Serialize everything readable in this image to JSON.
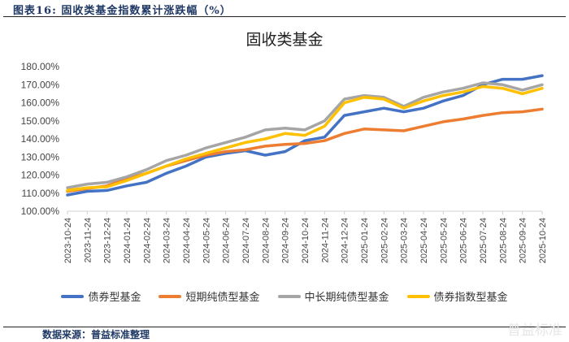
{
  "figure_title": "图表16:   固收类基金指数累计涨跌幅（%）",
  "source": "数据来源：普益标准整理",
  "watermark": "普益标准",
  "chart_data": {
    "type": "line",
    "title": "固收类基金",
    "xlabel": "",
    "ylabel": "",
    "ylim": [
      100,
      180
    ],
    "yticks": [
      "100.00%",
      "110.00%",
      "120.00%",
      "130.00%",
      "140.00%",
      "150.00%",
      "160.00%",
      "170.00%",
      "180.00%"
    ],
    "grid": false,
    "legend_position": "bottom",
    "x": [
      "2023-10-24",
      "2023-11-24",
      "2023-12-24",
      "2024-01-24",
      "2024-02-24",
      "2024-03-24",
      "2024-04-24",
      "2024-05-24",
      "2024-06-24",
      "2024-07-24",
      "2024-08-24",
      "2024-09-24",
      "2024-10-24",
      "2024-11-24",
      "2024-12-24",
      "2025-01-24",
      "2025-02-24",
      "2025-03-24",
      "2025-04-24",
      "2025-05-24",
      "2025-06-24",
      "2025-07-24",
      "2025-08-24",
      "2025-09-24",
      "2025-10-24"
    ],
    "series": [
      {
        "name": "债券型基金",
        "color": "#4472c4",
        "values": [
          109,
          111,
          111.5,
          114,
          116,
          121,
          125,
          130,
          132,
          133.5,
          131,
          133,
          139,
          141,
          153,
          155,
          157,
          155,
          157,
          161,
          164,
          170,
          173,
          173,
          175
        ]
      },
      {
        "name": "短期纯债型基金",
        "color": "#ed7d31",
        "values": [
          111,
          112.5,
          114,
          118,
          121,
          125,
          128,
          131,
          133,
          134,
          136,
          137,
          137.5,
          139,
          143,
          145.5,
          145,
          144.5,
          147,
          149.5,
          151,
          153,
          154.5,
          155,
          156.5
        ]
      },
      {
        "name": "中长期纯债型基金",
        "color": "#a5a5a5",
        "values": [
          113,
          115,
          116,
          119,
          123,
          128,
          131,
          135,
          138,
          141,
          145,
          146,
          145,
          150,
          162,
          164,
          163,
          158,
          163,
          166,
          168,
          171,
          170,
          167,
          170
        ]
      },
      {
        "name": "债券指数型基金",
        "color": "#ffc000",
        "values": [
          111.5,
          113,
          113.5,
          117,
          121,
          125,
          129,
          132,
          135,
          138,
          140,
          143,
          142,
          147,
          160,
          163,
          162,
          157,
          161,
          164,
          166,
          169,
          168,
          165,
          168
        ]
      }
    ]
  }
}
